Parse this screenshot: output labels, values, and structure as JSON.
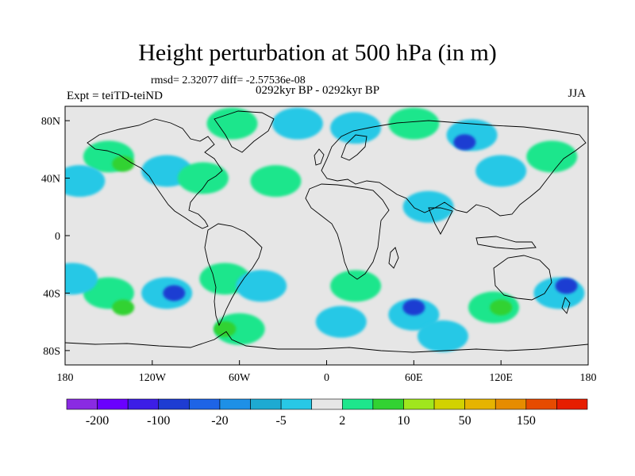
{
  "title": "Height perturbation at 500 hPa (in m)",
  "stats": "rmsd= 2.32077 diff= -2.57536e-08",
  "period": "0292kyr BP - 0292kyr BP",
  "experiment": "Expt = teiTD-teiND",
  "season": "JJA",
  "colors": {
    "background": "#e6e6e6",
    "levels": [
      "#8a2be2",
      "#6a00ff",
      "#3c1ee6",
      "#1e3cd2",
      "#1e64e6",
      "#1e90e6",
      "#1eaad2",
      "#28c8e6",
      "#e6e6e6",
      "#1ee68c",
      "#32d232",
      "#a0e61e",
      "#d2d200",
      "#e6b400",
      "#e68c00",
      "#e64b00",
      "#e61e00"
    ]
  },
  "chart_data": {
    "type": "heatmap",
    "title": "Height perturbation at 500 hPa (in m)",
    "variable": "500 hPa geopotential height perturbation",
    "units": "m",
    "x_ticks": [
      "180",
      "120W",
      "60W",
      "0",
      "60E",
      "120E",
      "180"
    ],
    "y_ticks": [
      "80N",
      "40N",
      "0",
      "40S",
      "80S"
    ],
    "lon_range": [
      -180,
      180
    ],
    "lat_range": [
      -90,
      90
    ],
    "colorbar_labels": [
      "-200",
      "-100",
      "-20",
      "-5",
      "2",
      "10",
      "50",
      "150"
    ],
    "colorbar_boundaries": [
      -200,
      -100,
      -50,
      -20,
      -10,
      -5,
      -2,
      2,
      5,
      10,
      20,
      50,
      100,
      150,
      200
    ],
    "blobs": [
      {
        "lon": -150,
        "lat": 55,
        "level": 2
      },
      {
        "lon": -140,
        "lat": 50,
        "level": 10
      },
      {
        "lon": -170,
        "lat": 38,
        "level": -5
      },
      {
        "lon": -110,
        "lat": 45,
        "level": -5
      },
      {
        "lon": -85,
        "lat": 40,
        "level": 2
      },
      {
        "lon": -65,
        "lat": 78,
        "level": 2
      },
      {
        "lon": -20,
        "lat": 78,
        "level": -5
      },
      {
        "lon": -35,
        "lat": 38,
        "level": 2
      },
      {
        "lon": 20,
        "lat": 75,
        "level": -5
      },
      {
        "lon": 60,
        "lat": 78,
        "level": 2
      },
      {
        "lon": 100,
        "lat": 70,
        "level": -5
      },
      {
        "lon": 95,
        "lat": 65,
        "level": -20
      },
      {
        "lon": 155,
        "lat": 55,
        "level": 2
      },
      {
        "lon": 70,
        "lat": 20,
        "level": -5
      },
      {
        "lon": 120,
        "lat": 45,
        "level": -5
      },
      {
        "lon": -150,
        "lat": -40,
        "level": 2
      },
      {
        "lon": -140,
        "lat": -50,
        "level": 10
      },
      {
        "lon": -175,
        "lat": -30,
        "level": -5
      },
      {
        "lon": -110,
        "lat": -40,
        "level": -5
      },
      {
        "lon": -105,
        "lat": -40,
        "level": -20
      },
      {
        "lon": -70,
        "lat": -30,
        "level": 2
      },
      {
        "lon": -60,
        "lat": -65,
        "level": 2
      },
      {
        "lon": -70,
        "lat": -65,
        "level": 10
      },
      {
        "lon": -45,
        "lat": -35,
        "level": -5
      },
      {
        "lon": 20,
        "lat": -35,
        "level": 2
      },
      {
        "lon": 10,
        "lat": -60,
        "level": -5
      },
      {
        "lon": 60,
        "lat": -55,
        "level": -5
      },
      {
        "lon": 60,
        "lat": -50,
        "level": -20
      },
      {
        "lon": 115,
        "lat": -50,
        "level": 2
      },
      {
        "lon": 120,
        "lat": -50,
        "level": 10
      },
      {
        "lon": 160,
        "lat": -40,
        "level": -5
      },
      {
        "lon": 165,
        "lat": -35,
        "level": -20
      },
      {
        "lon": 80,
        "lat": -70,
        "level": -5
      }
    ]
  }
}
